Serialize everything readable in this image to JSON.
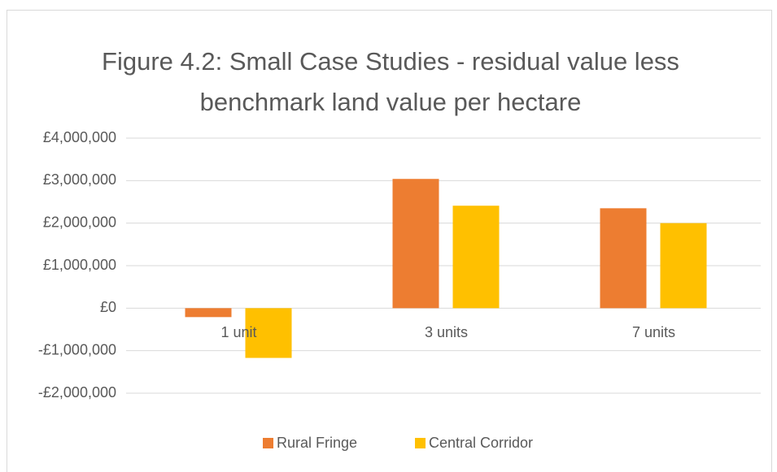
{
  "chart_data": {
    "type": "bar",
    "title": [
      "Figure 4.2: Small Case Studies - residual value less",
      "benchmark land value per hectare"
    ],
    "categories": [
      "1 unit",
      "3 units",
      "7 units"
    ],
    "series": [
      {
        "name": "Rural Fringe",
        "color": "#ed7d31",
        "values": [
          -210000,
          3040000,
          2350000
        ]
      },
      {
        "name": "Central Corridor",
        "color": "#ffc000",
        "values": [
          -1170000,
          2410000,
          2000000
        ]
      }
    ],
    "ylim": [
      -2000000,
      4000000
    ],
    "yticks": [
      {
        "value": 4000000,
        "label": "£4,000,000"
      },
      {
        "value": 3000000,
        "label": "£3,000,000"
      },
      {
        "value": 2000000,
        "label": "£2,000,000"
      },
      {
        "value": 1000000,
        "label": "£1,000,000"
      },
      {
        "value": 0,
        "label": "£0"
      },
      {
        "value": -1000000,
        "label": "-£1,000,000"
      },
      {
        "value": -2000000,
        "label": "-£2,000,000"
      }
    ],
    "grid": true,
    "legend": "bottom"
  }
}
